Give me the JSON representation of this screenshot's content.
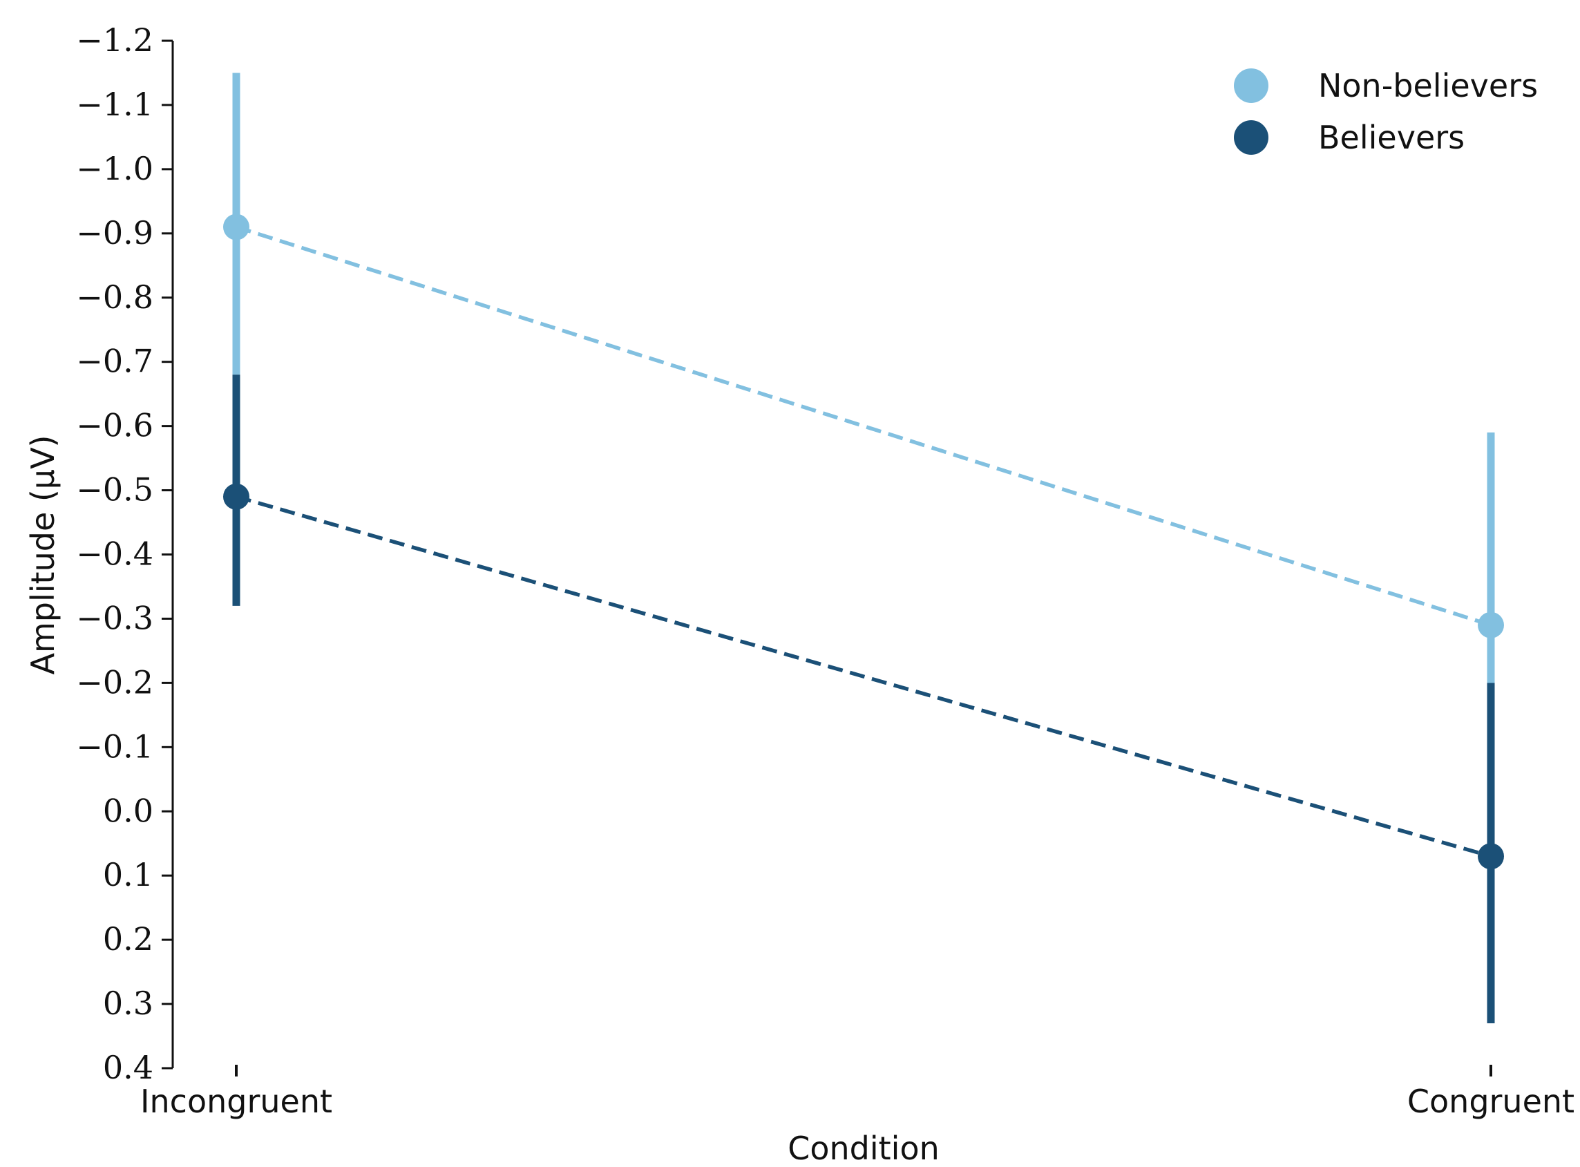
{
  "chart_data": {
    "type": "line",
    "title": "",
    "xlabel": "Condition",
    "ylabel": "Amplitude (µV)",
    "y_inverted": true,
    "ylim": [
      0.4,
      -1.2
    ],
    "yticks": [
      0.4,
      0.3,
      0.2,
      0.1,
      0.0,
      -0.1,
      -0.2,
      -0.3,
      -0.4,
      -0.5,
      -0.6,
      -0.7,
      -0.8,
      -0.9,
      -1.0,
      -1.1,
      -1.2
    ],
    "ytick_labels": [
      "0.4",
      "0.3",
      "0.2",
      "0.1",
      "0.0",
      "−0.1",
      "−0.2",
      "−0.3",
      "−0.4",
      "−0.5",
      "−0.6",
      "−0.7",
      "−0.8",
      "−0.9",
      "−1.0",
      "−1.1",
      "−1.2"
    ],
    "categories": [
      "Incongruent",
      "Congruent"
    ],
    "grid": false,
    "legend_position": "top-right",
    "line_style": "dashed",
    "series": [
      {
        "name": "Non-believers",
        "color": "#82c0e0",
        "values": [
          -0.91,
          -0.29
        ],
        "error_low": [
          -0.68,
          -0.19
        ],
        "error_high": [
          -1.15,
          -0.59
        ]
      },
      {
        "name": "Believers",
        "color": "#1b5077",
        "values": [
          -0.49,
          0.07
        ],
        "error_low": [
          -0.32,
          0.33
        ],
        "error_high": [
          -0.68,
          -0.2
        ]
      }
    ]
  }
}
